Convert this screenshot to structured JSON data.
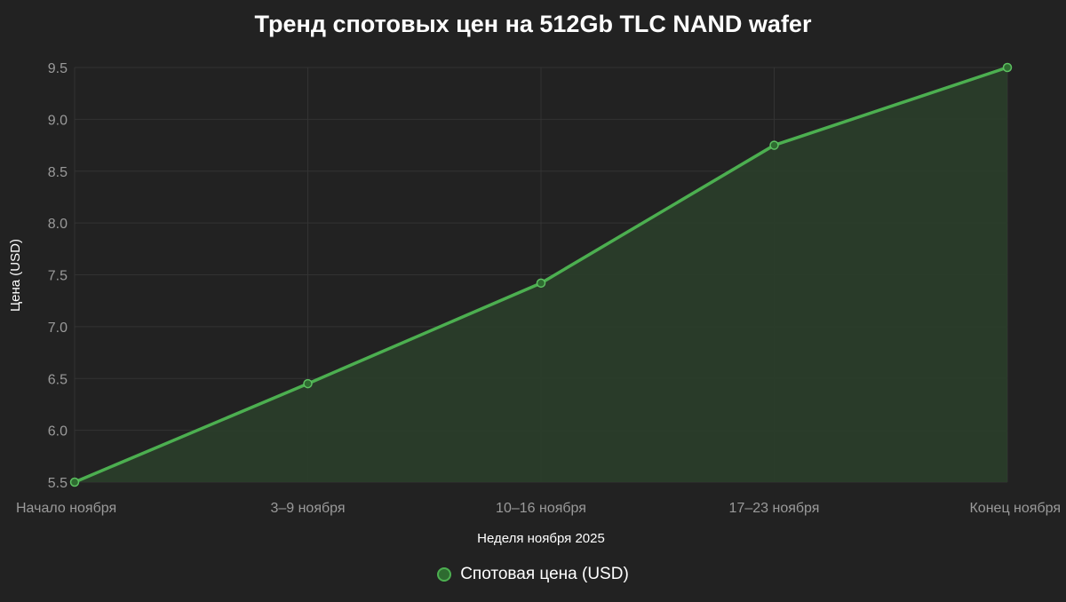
{
  "title": "Тренд спотовых цен на 512Gb TLC NAND wafer",
  "legend": {
    "label": "Спотовая цена (USD)"
  },
  "colors": {
    "background": "#222222",
    "line": "#4caf50",
    "fill": "#2a3d2a",
    "grid": "#333333",
    "tick": "#9a9a9a"
  },
  "chart_data": {
    "type": "area",
    "title": "Тренд спотовых цен на 512Gb TLC NAND wafer",
    "xlabel": "Неделя ноября 2025",
    "ylabel": "Цена (USD)",
    "categories": [
      "Начало ноября",
      "3–9 ноября",
      "10–16 ноября",
      "17–23 ноября",
      "Конец ноября"
    ],
    "series": [
      {
        "name": "Спотовая цена (USD)",
        "values": [
          5.5,
          6.45,
          7.42,
          8.75,
          9.5
        ]
      }
    ],
    "ylim": [
      5.5,
      9.5
    ],
    "yticks": [
      "9.5",
      "9.0",
      "8.5",
      "8.0",
      "7.5",
      "7.0",
      "6.5",
      "6.0",
      "5.5"
    ],
    "grid": true,
    "legend_position": "bottom"
  }
}
